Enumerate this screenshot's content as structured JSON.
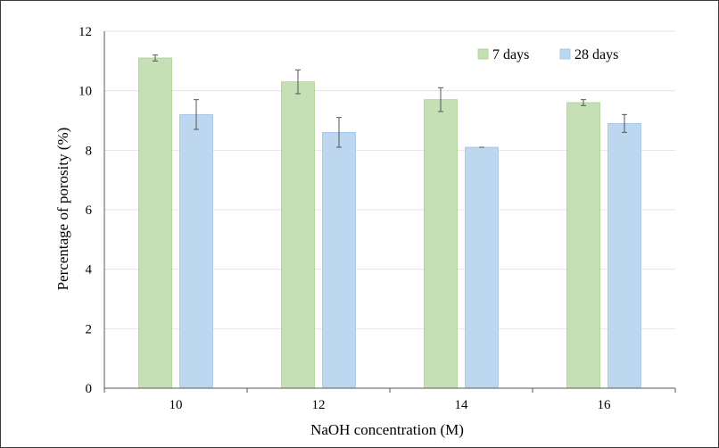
{
  "chart_data": {
    "type": "bar",
    "title": "",
    "xlabel": "NaOH concentration (M)",
    "ylabel": "Percentage of porosity (%)",
    "categories": [
      "10",
      "12",
      "14",
      "16"
    ],
    "ylim": [
      0,
      12
    ],
    "yticks": [
      "0",
      "2",
      "4",
      "6",
      "8",
      "10",
      "12"
    ],
    "grid": "horizontal",
    "legend_position": "top-right",
    "series": [
      {
        "name": "7 days",
        "color": "#c5e0b4",
        "edge": "#a9d18e",
        "values": [
          11.1,
          10.3,
          9.7,
          9.6
        ],
        "errors": [
          0.1,
          0.4,
          0.4,
          0.1
        ]
      },
      {
        "name": "28 days",
        "color": "#bdd7ee",
        "edge": "#9dc3e6",
        "values": [
          9.2,
          8.6,
          8.1,
          8.9
        ],
        "errors": [
          0.5,
          0.5,
          0.0,
          0.3
        ]
      }
    ]
  }
}
